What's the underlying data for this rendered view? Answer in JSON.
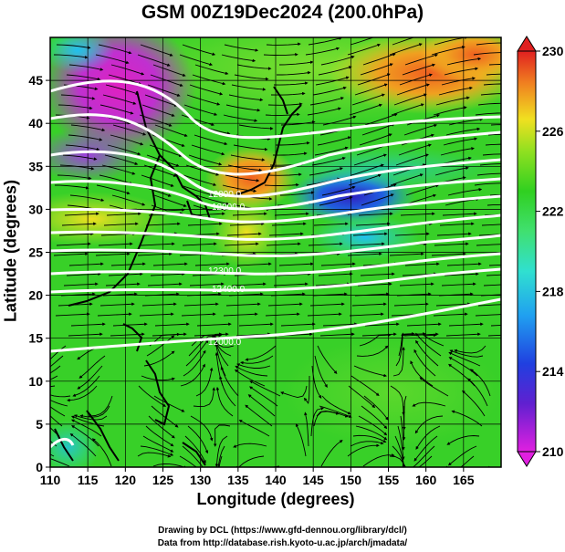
{
  "title": "GSM 00Z19Dec2024 (200.0hPa)",
  "x_axis": {
    "label": "Longitude (degrees)",
    "min": 110,
    "max": 170,
    "ticks": [
      "110",
      "115",
      "120",
      "125",
      "130",
      "135",
      "140",
      "145",
      "150",
      "155",
      "160",
      "165"
    ]
  },
  "y_axis": {
    "label": "Latitude  (degrees)",
    "min": 0,
    "max": 50,
    "ticks": [
      "0",
      "5",
      "10",
      "15",
      "20",
      "25",
      "30",
      "35",
      "40",
      "45"
    ]
  },
  "colorbar": {
    "ticks": [
      "210",
      "214",
      "218",
      "222",
      "226",
      "230"
    ],
    "min": 210,
    "max": 230
  },
  "contour_labels": [
    "12000.0",
    "12000.0",
    "12400.0",
    "12300.0",
    "12000.0"
  ],
  "credits": {
    "line1": "Drawing by DCL (https://www.gfd-dennou.org/library/dcl/)",
    "line2": "Data from http://database.rish.kyoto-u.ac.jp/arch/jmadata/"
  },
  "colors": {
    "frame": "#000000",
    "contour": "#ffffff",
    "streamline": "#000000"
  }
}
